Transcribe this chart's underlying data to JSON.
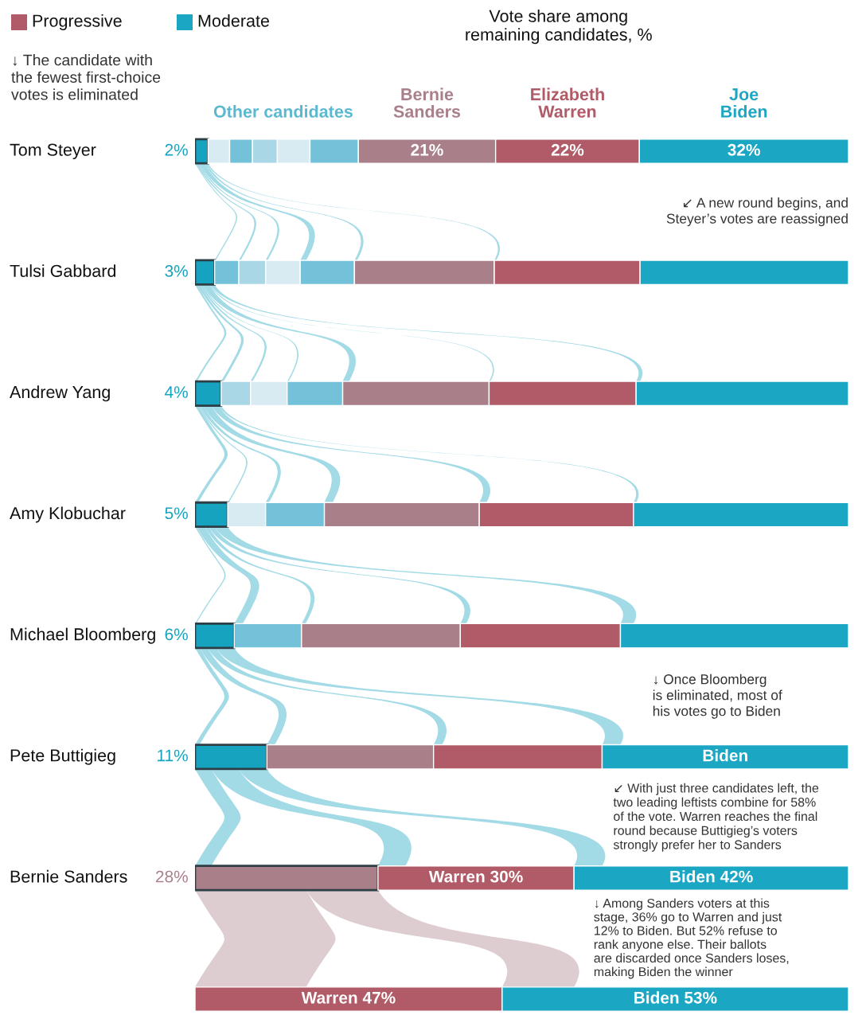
{
  "chart_data": {
    "type": "bar",
    "orientation": "horizontal",
    "stacked": true,
    "title": "Vote share among\nremaining candidates, %",
    "categories": [
      "Tom Steyer",
      "Tulsi Gabbard",
      "Andrew Yang",
      "Amy Klobuchar",
      "Michael Bloomberg",
      "Pete Buttigieg",
      "Bernie Sanders",
      null
    ],
    "series": [
      {
        "color": "#16a3c0",
        "values": [
          2,
          null,
          null,
          null,
          null,
          null,
          null,
          null
        ],
        "value_labels": [
          "2%",
          null,
          null,
          null,
          null,
          null,
          null,
          null
        ]
      },
      {
        "colors": [
          "#d8ebf2",
          "#16a3c0",
          null,
          null,
          null,
          null,
          null,
          null
        ],
        "values": [
          3.3,
          3,
          null,
          null,
          null,
          null,
          null,
          null
        ],
        "value_labels": [
          null,
          "3%",
          null,
          null,
          null,
          null,
          null,
          null
        ]
      },
      {
        "colors": [
          "#74c2d9",
          "#74c2d9",
          "#16a3c0",
          null,
          null,
          null,
          null,
          null
        ],
        "values": [
          3.5,
          3.7,
          4,
          null,
          null,
          null,
          null,
          null
        ],
        "value_labels": [
          null,
          null,
          "4%",
          null,
          null,
          null,
          null,
          null
        ]
      },
      {
        "colors": [
          "#aad7e6",
          "#aad7e6",
          "#aad7e6",
          "#16a3c0",
          null,
          null,
          null,
          null
        ],
        "values": [
          3.8,
          4.1,
          4.5,
          5,
          null,
          null,
          null,
          null
        ],
        "value_labels": [
          null,
          null,
          null,
          "5%",
          null,
          null,
          null,
          null
        ]
      },
      {
        "colors": [
          "#d8ebf2",
          "#d8ebf2",
          "#d8ebf2",
          "#d8ebf2",
          "#16a3c0",
          null,
          null,
          null
        ],
        "values": [
          5,
          5.3,
          5.6,
          5.8,
          6,
          null,
          null,
          null
        ],
        "value_labels": [
          null,
          null,
          null,
          null,
          "6%",
          null,
          null,
          null
        ]
      },
      {
        "colors": [
          "#74c2d9",
          "#74c2d9",
          "#74c2d9",
          "#74c2d9",
          "#74c2d9",
          "#16a3c0",
          null,
          null
        ],
        "values": [
          7.4,
          8.3,
          8.5,
          9,
          10.3,
          11,
          null,
          null
        ],
        "value_labels": [
          null,
          null,
          null,
          null,
          null,
          "11%",
          null,
          null
        ]
      },
      {
        "name": "Bernie\nSanders",
        "color": "#a97f8a",
        "values": [
          21,
          21.4,
          22.4,
          23.7,
          24.3,
          25.5,
          28,
          null
        ],
        "value_labels": [
          "21%",
          null,
          null,
          null,
          null,
          null,
          "28%",
          null
        ]
      },
      {
        "name": "Elizabeth\nWarren",
        "color": "#b05b67",
        "values": [
          22,
          22.3,
          22.5,
          23.6,
          24.5,
          25.8,
          30,
          47
        ],
        "value_labels": [
          "22%",
          null,
          null,
          null,
          null,
          null,
          "Warren 30%",
          "Warren 47%"
        ]
      },
      {
        "name": "Joe\nBiden",
        "color": "#1ba6c3",
        "values": [
          32,
          31.9,
          32.5,
          32.9,
          34.9,
          37.7,
          42,
          53
        ],
        "value_labels": [
          "32%",
          null,
          null,
          null,
          null,
          "Biden",
          "Biden 42%",
          "Biden 53%"
        ]
      }
    ],
    "annotations": [
      "Progressive",
      "Moderate",
      "↓ The candidate with\nthe fewest first-choice\nvotes is eliminated",
      "Other candidates",
      "↙ A new round begins, and\nSteyer’s votes are reassigned",
      "↓ Once Bloomberg\nis eliminated, most of\nhis votes go to Biden",
      "↙ With just three candidates left, the\ntwo leading leftists combine for 58%\nof the vote. Warren reaches the final\nround because Buttigieg’s voters\nstrongly prefer her to Sanders",
      "↓ Among Sanders voters at this\nstage, 36% go to Warren and just\n12% to Biden. But 52% refuse to\nrank anyone else. Their ballots\nare discarded once Sanders loses,\nmaking Biden the winner"
    ]
  }
}
